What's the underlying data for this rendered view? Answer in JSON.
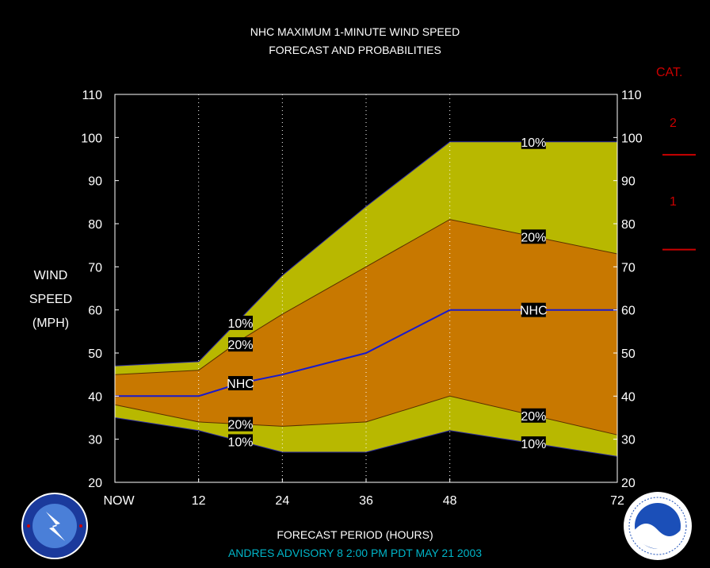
{
  "title": {
    "line1": "NHC MAXIMUM 1-MINUTE WIND SPEED",
    "line2": "FORECAST AND PROBABILITIES"
  },
  "y_axis": {
    "line1": "WIND",
    "line2": "SPEED",
    "line3": "(MPH)"
  },
  "x_axis": {
    "label": "FORECAST PERIOD (HOURS)"
  },
  "categories_panel": {
    "header": "CAT.",
    "labels": [
      "2",
      "1"
    ],
    "boundaries_mph": [
      96,
      74
    ],
    "color": "#cc0000"
  },
  "advisory": "ANDRES   ADVISORY  8 2:00  PM  PDT  MAY 21  2003",
  "logos": {
    "left": "nws-logo",
    "right": "noaa-logo"
  },
  "colors": {
    "outer_band": "#b8b800",
    "inner_band": "#c87800",
    "nhc_line": "#1a1acc",
    "background": "#000000"
  },
  "chart_data": {
    "type": "area",
    "x": [
      0,
      12,
      18,
      24,
      36,
      48,
      72
    ],
    "x_tick_values": [
      0,
      12,
      24,
      36,
      48,
      72
    ],
    "x_tick_labels": [
      "NOW",
      "12",
      "24",
      "36",
      "48",
      "72"
    ],
    "y_ticks": [
      20,
      30,
      40,
      50,
      60,
      70,
      80,
      90,
      100,
      110
    ],
    "ylim": [
      20,
      110
    ],
    "xlim": [
      0,
      72
    ],
    "grid_x": [
      12,
      24,
      36,
      48
    ],
    "series": [
      {
        "name": "10%",
        "values": [
          47,
          48,
          58,
          68,
          84,
          99,
          99
        ]
      },
      {
        "name": "20%",
        "values": [
          45,
          46,
          53,
          59,
          70,
          81,
          73
        ]
      },
      {
        "name": "NHC",
        "values": [
          40,
          40,
          43,
          45,
          50,
          60,
          60
        ]
      },
      {
        "name": "20%",
        "values": [
          38,
          34,
          33.5,
          33,
          34,
          40,
          31
        ]
      },
      {
        "name": "10%",
        "values": [
          35,
          32,
          29.5,
          27,
          27,
          32,
          26
        ]
      }
    ],
    "annotations": [
      {
        "text": "10%",
        "x": 18,
        "y": 57,
        "series": 0
      },
      {
        "text": "20%",
        "x": 18,
        "y": 52,
        "series": 1
      },
      {
        "text": "NHC",
        "x": 18,
        "y": 43,
        "series": 2
      },
      {
        "text": "20%",
        "x": 18,
        "y": 33.5,
        "series": 3
      },
      {
        "text": "10%",
        "x": 18,
        "y": 29.5,
        "series": 4
      },
      {
        "text": "10%",
        "x": 60,
        "y": 99,
        "series": 0
      },
      {
        "text": "20%",
        "x": 60,
        "y": 77,
        "series": 1
      },
      {
        "text": "NHC",
        "x": 60,
        "y": 60,
        "series": 2
      },
      {
        "text": "20%",
        "x": 60,
        "y": 35.5,
        "series": 3
      },
      {
        "text": "10%",
        "x": 60,
        "y": 29,
        "series": 4
      }
    ]
  }
}
